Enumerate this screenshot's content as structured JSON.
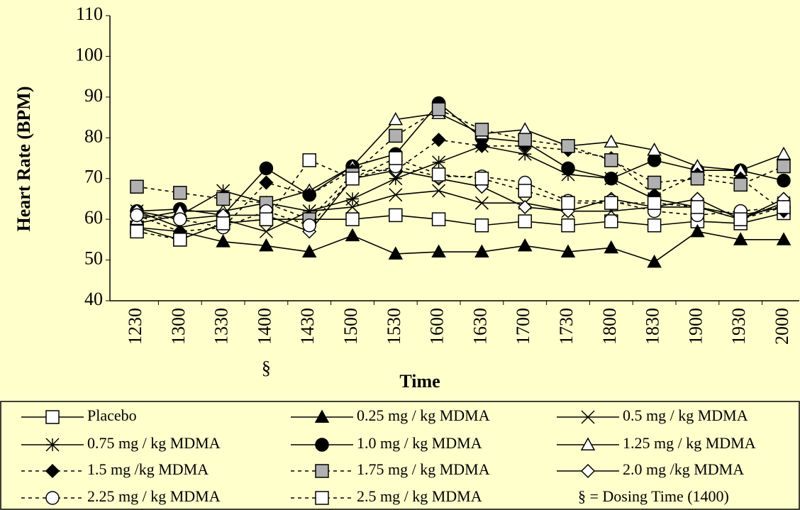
{
  "chart_data": {
    "type": "line",
    "x_label": "Time",
    "y_label": "Heart Rate (BPM)",
    "categories": [
      "1230",
      "1300",
      "1330",
      "1400",
      "1430",
      "1500",
      "1530",
      "1600",
      "1630",
      "1700",
      "1730",
      "1800",
      "1830",
      "1900",
      "1930",
      "2000"
    ],
    "dosing_marker": "§",
    "dosing_category": "1400",
    "dosing_note": "§ = Dosing Time (1400)",
    "ylim": [
      40,
      110
    ],
    "yticks": [
      40,
      50,
      60,
      70,
      80,
      90,
      100,
      110
    ],
    "grid": false,
    "series": [
      {
        "name": "Placebo",
        "color": "#000000",
        "marker": "square",
        "marker_fill": "#ffffff",
        "dashed": false,
        "values": [
          58,
          55,
          59,
          60,
          60,
          60,
          61,
          60,
          58.5,
          59.5,
          58.5,
          59.5,
          58.5,
          59.5,
          59,
          61.5
        ]
      },
      {
        "name": "0.25 mg / kg MDMA",
        "color": "#000000",
        "marker": "triangle",
        "marker_fill": "#000000",
        "dashed": false,
        "values": [
          58,
          57,
          54.5,
          53.5,
          52,
          56,
          51.5,
          52,
          52,
          53.5,
          52,
          53,
          49.5,
          57,
          55,
          55
        ]
      },
      {
        "name": "0.5 mg / kg MDMA",
        "color": "#000000",
        "marker": "x",
        "marker_fill": "#ffffff",
        "dashed": false,
        "values": [
          62,
          58,
          60,
          57,
          62,
          63,
          66,
          67,
          64,
          64,
          62,
          62,
          63,
          63,
          61,
          63
        ]
      },
      {
        "name": "0.75 mg / kg MDMA",
        "color": "#000000",
        "marker": "star",
        "marker_fill": "#ffffff",
        "dashed": false,
        "values": [
          59,
          61,
          67,
          64,
          62,
          65,
          70,
          74,
          78,
          76,
          71,
          70,
          65,
          63,
          60,
          64
        ]
      },
      {
        "name": "1.0 mg / kg MDMA",
        "color": "#000000",
        "marker": "circle",
        "marker_fill": "#000000",
        "dashed": false,
        "values": [
          62,
          62.5,
          61,
          72.5,
          66,
          73,
          76,
          88.5,
          80,
          79,
          72.5,
          70,
          74.5,
          72,
          72,
          69.5
        ]
      },
      {
        "name": "1.25 mg / kg MDMA",
        "color": "#000000",
        "marker": "triangle",
        "marker_fill": "#ffffff",
        "dashed": false,
        "values": [
          60,
          62,
          62,
          64,
          67,
          73,
          84.5,
          86,
          81,
          82,
          78,
          79,
          77,
          73,
          72,
          76
        ]
      },
      {
        "name": "1.5 mg /kg MDMA",
        "color": "#000000",
        "marker": "diamond",
        "marker_fill": "#000000",
        "dashed": true,
        "values": [
          61,
          57,
          58,
          69,
          66,
          72,
          72,
          79.5,
          78,
          78,
          77,
          75,
          66,
          71,
          70,
          62
        ]
      },
      {
        "name": "1.75 mg / kg MDMA",
        "color": "#000000",
        "marker": "square",
        "marker_fill": "#b0b0b0",
        "dashed": true,
        "values": [
          68,
          66.5,
          65,
          64,
          60,
          71,
          80.5,
          87,
          82,
          79.5,
          78,
          74.5,
          69,
          70,
          68.5,
          73
        ]
      },
      {
        "name": "2.0 mg /kg MDMA",
        "color": "#000000",
        "marker": "diamond",
        "marker_fill": "#ffffff",
        "dashed": false,
        "values": [
          62,
          60,
          61,
          61,
          57,
          70,
          72,
          70,
          68,
          63,
          62,
          65,
          63,
          65,
          60,
          65
        ]
      },
      {
        "name": "2.25 mg / kg MDMA",
        "color": "#000000",
        "marker": "circle",
        "marker_fill": "#ffffff",
        "dashed": true,
        "values": [
          61,
          60,
          58,
          62,
          58.5,
          70,
          73,
          70.5,
          70.5,
          69,
          64.5,
          64.5,
          62,
          61,
          62,
          63
        ]
      },
      {
        "name": "2.5 mg / kg MDMA",
        "color": "#000000",
        "marker": "square",
        "marker_fill": "#ffffff",
        "dashed": true,
        "values": [
          57,
          55,
          59,
          60,
          74.5,
          70,
          75,
          71,
          70,
          67,
          64,
          64,
          64,
          63,
          60,
          63
        ]
      }
    ]
  }
}
